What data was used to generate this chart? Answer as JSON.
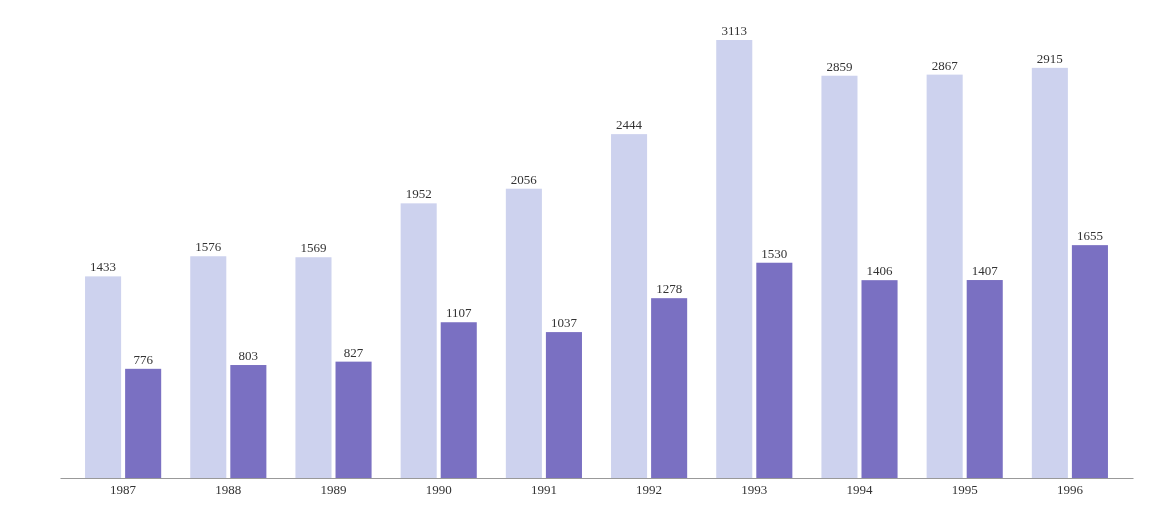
{
  "chart_data": {
    "type": "bar",
    "categories": [
      "1987",
      "1988",
      "1989",
      "1990",
      "1991",
      "1992",
      "1993",
      "1994",
      "1995",
      "1996"
    ],
    "series": [
      {
        "color": "#cdd2ee",
        "values": [
          1433,
          1576,
          1569,
          1952,
          2056,
          2444,
          3113,
          2859,
          2867,
          2915
        ]
      },
      {
        "color": "#7a70c2",
        "values": [
          776,
          803,
          827,
          1107,
          1037,
          1278,
          1530,
          1406,
          1407,
          1655
        ]
      }
    ],
    "data_labels": true
  }
}
